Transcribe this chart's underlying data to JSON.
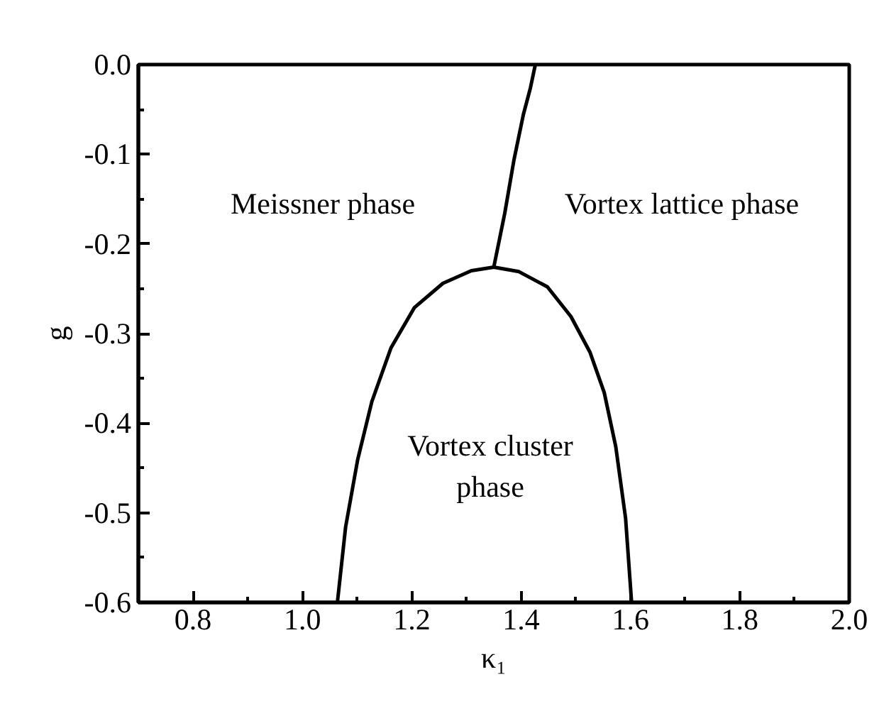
{
  "chart_data": {
    "type": "line",
    "xlabel": "κ₁",
    "ylabel": "g",
    "xlim": [
      0.7,
      2.0
    ],
    "xticks": [
      0.8,
      {
        "value": 1.0,
        "label": "1.0"
      },
      1.2,
      1.4,
      1.6,
      1.8,
      {
        "value": 2.0,
        "label": "2.0"
      }
    ],
    "ylim": [
      -0.6,
      0.0
    ],
    "yticks": [
      -0.6,
      -0.5,
      -0.4,
      -0.3,
      -0.2,
      -0.1,
      {
        "value": 0.0,
        "label": "0.0"
      }
    ],
    "marker": "none",
    "line_style": "solid",
    "series": [
      {
        "color": "#000000",
        "x": [
          1.35,
          1.37,
          1.387,
          1.404,
          1.417,
          1.426
        ],
        "values": [
          -0.226,
          -0.166,
          -0.106,
          -0.056,
          -0.026,
          0.0
        ]
      },
      {
        "color": "#000000",
        "x": [
          1.064,
          1.079,
          1.101,
          1.127,
          1.162,
          1.205,
          1.257,
          1.309,
          1.35,
          1.396,
          1.448,
          1.491,
          1.526,
          1.552,
          1.573,
          1.591,
          1.602
        ],
        "values": [
          -0.6,
          -0.516,
          -0.441,
          -0.376,
          -0.316,
          -0.271,
          -0.244,
          -0.23,
          -0.226,
          -0.231,
          -0.248,
          -0.281,
          -0.321,
          -0.366,
          -0.426,
          -0.506,
          -0.6
        ]
      }
    ],
    "annotations": [
      "Meissner phase",
      "Vortex lattice phase",
      "Vortex cluster\nphase"
    ]
  }
}
